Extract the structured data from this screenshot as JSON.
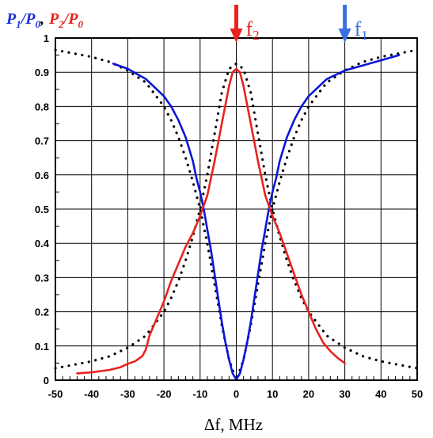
{
  "chart_data": {
    "type": "line",
    "title": "",
    "ylabel": {
      "p1": "P",
      "p1_sub": "1",
      "slash1": "/",
      "p0a": "P",
      "p0a_sub": "0",
      "comma": ",",
      "p2": "P",
      "p2_sub": "2",
      "slash2": "/",
      "p0b": "P",
      "p0b_sub": "0",
      "color_p1": "#1c2fd8",
      "color_p2": "#e8231f"
    },
    "xlabel": "Δf, MHz",
    "xlim": [
      -50,
      50
    ],
    "ylim": [
      0,
      1
    ],
    "grid": true,
    "x_ticks": [
      "-50",
      "-40",
      "-30",
      "-20",
      "-10",
      "0",
      "10",
      "20",
      "30",
      "40",
      "50"
    ],
    "y_ticks": [
      "0",
      "0.1",
      "0.2",
      "0.3",
      "0.4",
      "0.5",
      "0.6",
      "0.7",
      "0.8",
      "0.9",
      "1"
    ],
    "annotations": [
      {
        "base": "f",
        "sub": "2",
        "x": 0,
        "color": "#e8231f"
      },
      {
        "base": "f",
        "sub": "1",
        "x": 30,
        "color": "#3b6fe0"
      }
    ],
    "series": [
      {
        "color": "#0a16d8",
        "style": "solid",
        "points": [
          [
            -34,
            0.925
          ],
          [
            -30,
            0.91
          ],
          [
            -25,
            0.88
          ],
          [
            -20,
            0.83
          ],
          [
            -18,
            0.8
          ],
          [
            -16,
            0.76
          ],
          [
            -14,
            0.71
          ],
          [
            -12,
            0.64
          ],
          [
            -11,
            0.59
          ],
          [
            -10,
            0.55
          ],
          [
            -9,
            0.5
          ],
          [
            -8,
            0.44
          ],
          [
            -7,
            0.38
          ],
          [
            -6,
            0.31
          ],
          [
            -5,
            0.24
          ],
          [
            -4,
            0.17
          ],
          [
            -3,
            0.11
          ],
          [
            -2,
            0.06
          ],
          [
            -1,
            0.02
          ],
          [
            0,
            0.002
          ],
          [
            1,
            0.02
          ],
          [
            2,
            0.06
          ],
          [
            3,
            0.11
          ],
          [
            4,
            0.17
          ],
          [
            5,
            0.24
          ],
          [
            6,
            0.31
          ],
          [
            7,
            0.38
          ],
          [
            8,
            0.44
          ],
          [
            9,
            0.5
          ],
          [
            10,
            0.55
          ],
          [
            11,
            0.59
          ],
          [
            12,
            0.64
          ],
          [
            14,
            0.71
          ],
          [
            16,
            0.76
          ],
          [
            18,
            0.8
          ],
          [
            20,
            0.83
          ],
          [
            25,
            0.88
          ],
          [
            30,
            0.905
          ],
          [
            35,
            0.92
          ],
          [
            40,
            0.935
          ],
          [
            45,
            0.95
          ]
        ]
      },
      {
        "color": "#e8231f",
        "style": "solid",
        "points": [
          [
            -44,
            0.02
          ],
          [
            -40,
            0.023
          ],
          [
            -35,
            0.03
          ],
          [
            -32,
            0.038
          ],
          [
            -30,
            0.048
          ],
          [
            -28,
            0.055
          ],
          [
            -26,
            0.07
          ],
          [
            -25,
            0.09
          ],
          [
            -24,
            0.13
          ],
          [
            -22,
            0.18
          ],
          [
            -20,
            0.23
          ],
          [
            -18,
            0.29
          ],
          [
            -16,
            0.34
          ],
          [
            -14,
            0.39
          ],
          [
            -12,
            0.43
          ],
          [
            -10,
            0.48
          ],
          [
            -8,
            0.54
          ],
          [
            -6,
            0.64
          ],
          [
            -4,
            0.75
          ],
          [
            -2,
            0.86
          ],
          [
            -1,
            0.9
          ],
          [
            0,
            0.91
          ],
          [
            1,
            0.9
          ],
          [
            2,
            0.86
          ],
          [
            4,
            0.75
          ],
          [
            6,
            0.64
          ],
          [
            8,
            0.54
          ],
          [
            10,
            0.48
          ],
          [
            12,
            0.43
          ],
          [
            14,
            0.37
          ],
          [
            16,
            0.31
          ],
          [
            18,
            0.25
          ],
          [
            20,
            0.2
          ],
          [
            22,
            0.15
          ],
          [
            24,
            0.11
          ],
          [
            26,
            0.085
          ],
          [
            28,
            0.065
          ],
          [
            30,
            0.05
          ]
        ]
      },
      {
        "color": "#000000",
        "style": "dotted",
        "points": [
          [
            -50,
            0.965
          ],
          [
            -45,
            0.955
          ],
          [
            -40,
            0.945
          ],
          [
            -35,
            0.93
          ],
          [
            -30,
            0.905
          ],
          [
            -25,
            0.87
          ],
          [
            -20,
            0.8
          ],
          [
            -18,
            0.76
          ],
          [
            -16,
            0.71
          ],
          [
            -14,
            0.65
          ],
          [
            -12,
            0.58
          ],
          [
            -10,
            0.5
          ],
          [
            -8,
            0.4
          ],
          [
            -6,
            0.28
          ],
          [
            -4,
            0.16
          ],
          [
            -2,
            0.06
          ],
          [
            0,
            0.0
          ],
          [
            2,
            0.06
          ],
          [
            4,
            0.16
          ],
          [
            6,
            0.28
          ],
          [
            8,
            0.4
          ],
          [
            10,
            0.5
          ],
          [
            12,
            0.58
          ],
          [
            14,
            0.65
          ],
          [
            16,
            0.71
          ],
          [
            18,
            0.76
          ],
          [
            20,
            0.8
          ],
          [
            25,
            0.87
          ],
          [
            30,
            0.905
          ],
          [
            35,
            0.93
          ],
          [
            40,
            0.945
          ],
          [
            45,
            0.955
          ],
          [
            50,
            0.965
          ]
        ]
      },
      {
        "color": "#000000",
        "style": "dotted",
        "points": [
          [
            -50,
            0.035
          ],
          [
            -45,
            0.045
          ],
          [
            -40,
            0.055
          ],
          [
            -35,
            0.07
          ],
          [
            -30,
            0.095
          ],
          [
            -25,
            0.13
          ],
          [
            -20,
            0.2
          ],
          [
            -18,
            0.24
          ],
          [
            -16,
            0.29
          ],
          [
            -14,
            0.35
          ],
          [
            -12,
            0.42
          ],
          [
            -10,
            0.5
          ],
          [
            -8,
            0.6
          ],
          [
            -6,
            0.72
          ],
          [
            -4,
            0.84
          ],
          [
            -2,
            0.91
          ],
          [
            0,
            0.925
          ],
          [
            2,
            0.91
          ],
          [
            4,
            0.84
          ],
          [
            6,
            0.72
          ],
          [
            8,
            0.6
          ],
          [
            10,
            0.5
          ],
          [
            12,
            0.42
          ],
          [
            14,
            0.35
          ],
          [
            16,
            0.29
          ],
          [
            18,
            0.24
          ],
          [
            20,
            0.2
          ],
          [
            25,
            0.13
          ],
          [
            30,
            0.095
          ],
          [
            35,
            0.07
          ],
          [
            40,
            0.055
          ],
          [
            45,
            0.045
          ],
          [
            50,
            0.035
          ]
        ]
      }
    ]
  }
}
